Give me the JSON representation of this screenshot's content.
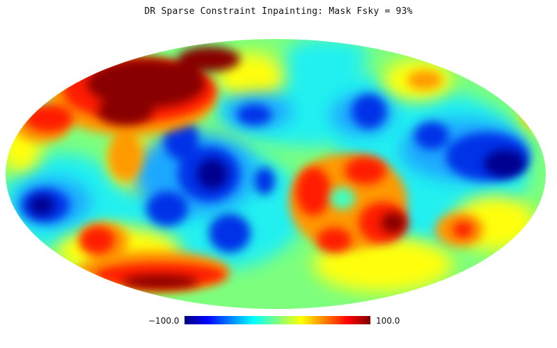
{
  "title": "DR Sparse Constraint Inpainting: Mask Fsky = 93%",
  "colorbar": {
    "min_label": "−100.0",
    "max_label": "100.0",
    "min_value": -100.0,
    "max_value": 100.0,
    "colormap": "jet",
    "stops": [
      "#00007f",
      "#0000ff",
      "#00ffff",
      "#7fff7f",
      "#ffff00",
      "#ff0000",
      "#7f0000"
    ]
  },
  "map": {
    "projection": "mollweide",
    "field_colors": {
      "background": "#7dff7d",
      "deep_blue": "#00008f",
      "blue": "#0030e8",
      "light_blue": "#1aa8ff",
      "cyan": "#20f0f0",
      "green": "#7dff7d",
      "yellow": "#ffff10",
      "orange": "#ff9a00",
      "red": "#ff1a00",
      "dark_red": "#880000"
    }
  }
}
